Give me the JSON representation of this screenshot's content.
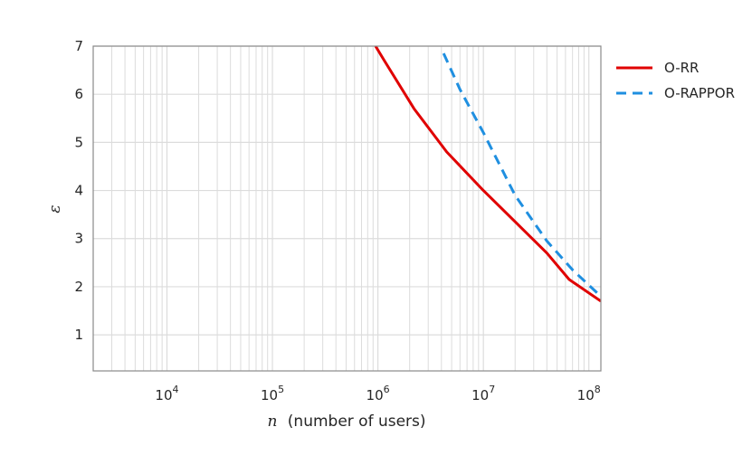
{
  "chart_data": {
    "type": "line",
    "xscale": "log",
    "xlim": [
      2000,
      130000000
    ],
    "ylim": [
      0.25,
      7
    ],
    "grid": true,
    "xlabel_symbol": "n",
    "xlabel": "(number of users)",
    "ylabel": "ε",
    "title": "",
    "x_ticks": [
      {
        "exp": 4,
        "base": "10",
        "sup": "4"
      },
      {
        "exp": 5,
        "base": "10",
        "sup": "5"
      },
      {
        "exp": 6,
        "base": "10",
        "sup": "6"
      },
      {
        "exp": 7,
        "base": "10",
        "sup": "7"
      },
      {
        "exp": 8,
        "base": "10",
        "sup": "8"
      }
    ],
    "y_ticks": [
      "1",
      "2",
      "3",
      "4",
      "5",
      "6",
      "7"
    ],
    "legend_position": "outside-top-right",
    "series": [
      {
        "name": "O-RR",
        "color": "#e00000",
        "style": "solid",
        "points": [
          [
            950000,
            7.0
          ],
          [
            1150000,
            6.7
          ],
          [
            2200000,
            5.7
          ],
          [
            4500000,
            4.8
          ],
          [
            10000000,
            4.0
          ],
          [
            20000000,
            3.35
          ],
          [
            40000000,
            2.7
          ],
          [
            65000000,
            2.15
          ],
          [
            130000000,
            1.7
          ]
        ]
      },
      {
        "name": "O-RAPPOR",
        "color": "#1f8fe0",
        "style": "dashed",
        "points": [
          [
            4200000,
            6.85
          ],
          [
            6000000,
            6.1
          ],
          [
            10000000,
            5.2
          ],
          [
            20000000,
            3.9
          ],
          [
            40000000,
            2.95
          ],
          [
            70000000,
            2.35
          ],
          [
            130000000,
            1.8
          ]
        ]
      }
    ]
  }
}
